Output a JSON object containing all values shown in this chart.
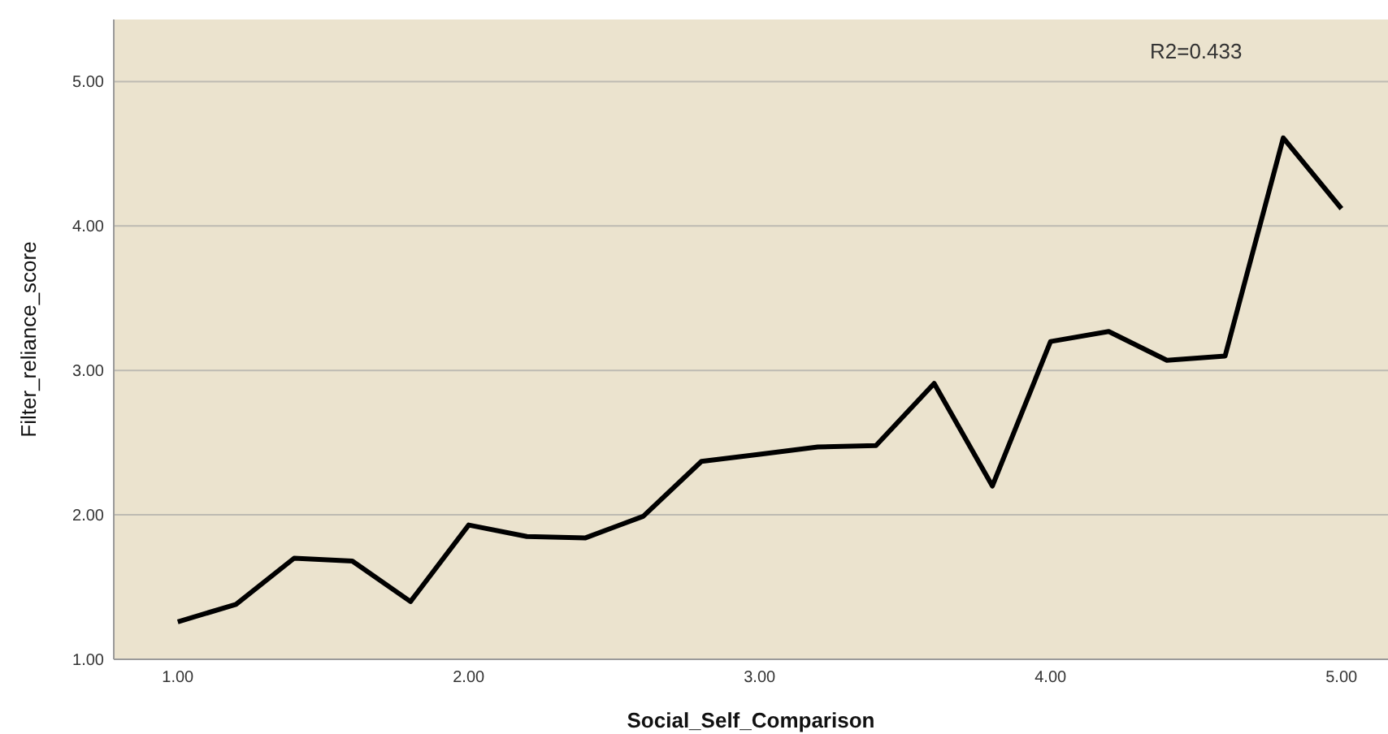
{
  "chart_data": {
    "type": "line",
    "xlabel": "Social_Self_Comparison",
    "ylabel": "Filter_reliance_score",
    "annotations": [
      "R2=0.433"
    ],
    "x": [
      1.0,
      1.2,
      1.4,
      1.6,
      1.8,
      2.0,
      2.2,
      2.4,
      2.6,
      2.8,
      3.0,
      3.2,
      3.4,
      3.6,
      3.8,
      4.0,
      4.2,
      4.4,
      4.6,
      4.8,
      5.0
    ],
    "series": [
      {
        "color": "#000000",
        "values": [
          1.26,
          1.38,
          1.7,
          1.68,
          1.4,
          1.93,
          1.85,
          1.84,
          1.99,
          2.37,
          2.42,
          2.47,
          2.48,
          2.91,
          2.2,
          3.2,
          3.27,
          3.07,
          3.1,
          4.61,
          4.12
        ]
      }
    ],
    "xlim": [
      0.78,
      5.16
    ],
    "ylim": [
      1,
      5.43
    ],
    "xticks": [
      {
        "value": 1,
        "label": "1.00"
      },
      {
        "value": 2,
        "label": "2.00"
      },
      {
        "value": 3,
        "label": "3.00"
      },
      {
        "value": 4,
        "label": "4.00"
      },
      {
        "value": 5,
        "label": "5.00"
      }
    ],
    "yticks": [
      {
        "value": 1,
        "label": "1.00"
      },
      {
        "value": 2,
        "label": "2.00"
      },
      {
        "value": 3,
        "label": "3.00"
      },
      {
        "value": 4,
        "label": "4.00"
      },
      {
        "value": 5,
        "label": "5.00"
      }
    ],
    "grid": "y",
    "marker": "none",
    "line_style": "solid"
  }
}
